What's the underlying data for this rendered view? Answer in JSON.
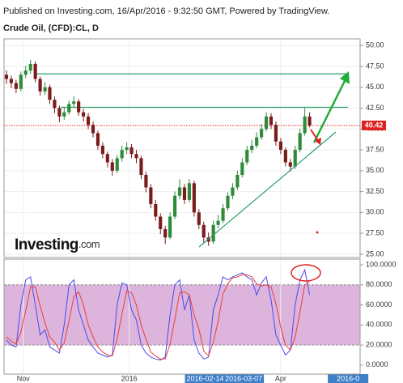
{
  "header": "Published on Investing.com, 16/Apr/2016 - 9:32:50 GMT, Powered by TradingView.",
  "chart_data": {
    "type": "candlestick",
    "title": "Crude Oil, (CFD):CL, D",
    "watermark": [
      "Investing",
      ".com"
    ],
    "up_color": "#2e8b3a",
    "down_color": "#7a1c1c",
    "grid": true,
    "xlim": [
      -0.5,
      73.5
    ],
    "ylim": [
      24.6,
      50.8
    ],
    "yticks": [
      {
        "value": 25,
        "label": "25.00"
      },
      {
        "value": 27.5,
        "label": "27.50"
      },
      {
        "value": 30,
        "label": "30.00"
      },
      {
        "value": 32.5,
        "label": "32.50"
      },
      {
        "value": 35,
        "label": "35.00"
      },
      {
        "value": 37.5,
        "label": "37.50"
      },
      {
        "value": 40,
        "label": "40.00"
      },
      {
        "value": 42.5,
        "label": "42.50"
      },
      {
        "value": 45,
        "label": "45.00"
      },
      {
        "value": 47.5,
        "label": "47.50"
      },
      {
        "value": 50,
        "label": "50.00"
      }
    ],
    "xticks": [
      {
        "value": 3.5,
        "label": "Nov"
      },
      {
        "value": 25.5,
        "label": "2016"
      },
      {
        "value": 57,
        "label": "Apr"
      }
    ],
    "x_range_labels": [
      {
        "value": 41.3,
        "label": "2016-02-14"
      },
      {
        "value": 49.3,
        "label": "2016-03-07"
      },
      {
        "value": 71,
        "label": "2016-0"
      }
    ],
    "last_price": 40.42,
    "last_price_color": "#e02020",
    "levels": [
      46.6,
      42.6
    ],
    "level_color": "#2a9d6e",
    "candles": [
      [
        46.5,
        47.0,
        45.4,
        46.0
      ],
      [
        46.0,
        46.4,
        44.9,
        45.5
      ],
      [
        45.5,
        45.9,
        44.3,
        44.8
      ],
      [
        44.8,
        46.9,
        44.5,
        46.5
      ],
      [
        46.5,
        47.6,
        46.1,
        47.0
      ],
      [
        47.0,
        48.3,
        46.6,
        47.8
      ],
      [
        47.8,
        48.1,
        45.6,
        46.0
      ],
      [
        46.0,
        46.3,
        44.0,
        44.5
      ],
      [
        44.5,
        45.6,
        44.1,
        45.0
      ],
      [
        45.0,
        45.3,
        43.0,
        43.5
      ],
      [
        43.5,
        43.9,
        41.9,
        42.5
      ],
      [
        42.5,
        42.8,
        40.8,
        41.5
      ],
      [
        41.5,
        42.6,
        41.1,
        42.0
      ],
      [
        42.0,
        43.4,
        41.7,
        43.0
      ],
      [
        43.0,
        43.9,
        42.6,
        43.3
      ],
      [
        43.3,
        43.6,
        41.6,
        42.0
      ],
      [
        42.0,
        42.4,
        40.9,
        41.5
      ],
      [
        41.5,
        41.9,
        40.0,
        40.5
      ],
      [
        40.5,
        40.9,
        39.0,
        39.5
      ],
      [
        39.5,
        39.8,
        37.5,
        38.0
      ],
      [
        38.0,
        38.4,
        36.5,
        37.0
      ],
      [
        37.0,
        37.3,
        35.4,
        36.0
      ],
      [
        36.0,
        36.4,
        34.4,
        35.0
      ],
      [
        35.0,
        36.9,
        34.7,
        36.5
      ],
      [
        36.5,
        38.0,
        36.1,
        37.5
      ],
      [
        37.5,
        38.4,
        37.0,
        37.8
      ],
      [
        37.8,
        38.2,
        36.5,
        37.0
      ],
      [
        37.0,
        37.5,
        35.9,
        36.5
      ],
      [
        36.5,
        36.8,
        34.0,
        34.5
      ],
      [
        34.5,
        34.9,
        32.4,
        33.0
      ],
      [
        33.0,
        33.4,
        30.5,
        31.0
      ],
      [
        31.0,
        31.5,
        29.0,
        29.5
      ],
      [
        29.5,
        29.9,
        27.4,
        28.0
      ],
      [
        28.0,
        28.4,
        26.2,
        27.0
      ],
      [
        27.0,
        30.0,
        26.8,
        29.5
      ],
      [
        29.5,
        32.5,
        29.2,
        32.0
      ],
      [
        32.0,
        34.0,
        31.6,
        33.0
      ],
      [
        33.0,
        33.4,
        31.0,
        31.5
      ],
      [
        31.5,
        34.0,
        31.2,
        33.5
      ],
      [
        33.5,
        33.8,
        29.5,
        30.0
      ],
      [
        30.0,
        30.4,
        28.0,
        28.5
      ],
      [
        28.5,
        28.9,
        26.4,
        27.0
      ],
      [
        27.0,
        27.6,
        26.0,
        26.5
      ],
      [
        26.5,
        29.0,
        26.2,
        28.5
      ],
      [
        28.5,
        29.7,
        28.1,
        29.0
      ],
      [
        29.0,
        31.0,
        28.7,
        30.5
      ],
      [
        30.5,
        32.4,
        30.2,
        32.0
      ],
      [
        32.0,
        33.5,
        31.6,
        33.0
      ],
      [
        33.0,
        35.0,
        32.7,
        34.5
      ],
      [
        34.5,
        36.5,
        34.2,
        36.0
      ],
      [
        36.0,
        38.0,
        35.7,
        37.5
      ],
      [
        37.5,
        38.7,
        37.1,
        38.0
      ],
      [
        38.0,
        39.6,
        37.7,
        39.0
      ],
      [
        39.0,
        40.6,
        38.7,
        40.0
      ],
      [
        40.0,
        42.0,
        39.7,
        41.5
      ],
      [
        41.5,
        41.9,
        40.0,
        40.5
      ],
      [
        40.5,
        40.9,
        38.0,
        38.5
      ],
      [
        38.5,
        38.9,
        37.0,
        37.5
      ],
      [
        37.5,
        37.8,
        35.5,
        36.0
      ],
      [
        36.0,
        36.4,
        34.9,
        35.5
      ],
      [
        35.5,
        38.0,
        35.2,
        37.5
      ],
      [
        37.5,
        40.0,
        37.2,
        39.5
      ],
      [
        39.5,
        42.5,
        39.2,
        41.5
      ],
      [
        41.5,
        42.0,
        40.2,
        40.42
      ]
    ],
    "stochastic": {
      "ylim": [
        -9,
        105.7
      ],
      "yticks": [
        {
          "value": 0,
          "label": "0.0000"
        },
        {
          "value": 20,
          "label": "20.0000"
        },
        {
          "value": 40,
          "label": "40.0000"
        },
        {
          "value": 60,
          "label": "60.0000"
        },
        {
          "value": 80,
          "label": "80.0000"
        },
        {
          "value": 100,
          "label": "100.0000"
        }
      ],
      "band": [
        20,
        80
      ],
      "band_color": "#dcb4dc",
      "series": [
        {
          "color": "#4a4af0",
          "values": [
            25,
            20,
            18,
            60,
            85,
            88,
            60,
            30,
            35,
            18,
            15,
            12,
            40,
            80,
            85,
            55,
            40,
            25,
            18,
            12,
            10,
            8,
            10,
            60,
            82,
            80,
            55,
            45,
            20,
            12,
            8,
            6,
            5,
            8,
            50,
            80,
            85,
            55,
            70,
            25,
            12,
            6,
            8,
            55,
            70,
            88,
            85,
            88,
            90,
            92,
            88,
            85,
            70,
            82,
            88,
            65,
            30,
            20,
            10,
            15,
            60,
            85,
            95,
            70
          ]
        },
        {
          "color": "#f03a3a",
          "values": [
            28,
            24,
            21,
            33,
            54,
            78,
            78,
            59,
            42,
            28,
            23,
            15,
            22,
            44,
            68,
            73,
            60,
            40,
            28,
            18,
            13,
            10,
            9,
            26,
            51,
            74,
            72,
            60,
            40,
            26,
            13,
            9,
            6,
            6,
            21,
            46,
            72,
            73,
            70,
            50,
            36,
            14,
            9,
            23,
            44,
            71,
            81,
            87,
            88,
            90,
            90,
            88,
            81,
            79,
            80,
            78,
            61,
            38,
            20,
            15,
            28,
            53,
            80,
            83
          ]
        }
      ]
    }
  }
}
